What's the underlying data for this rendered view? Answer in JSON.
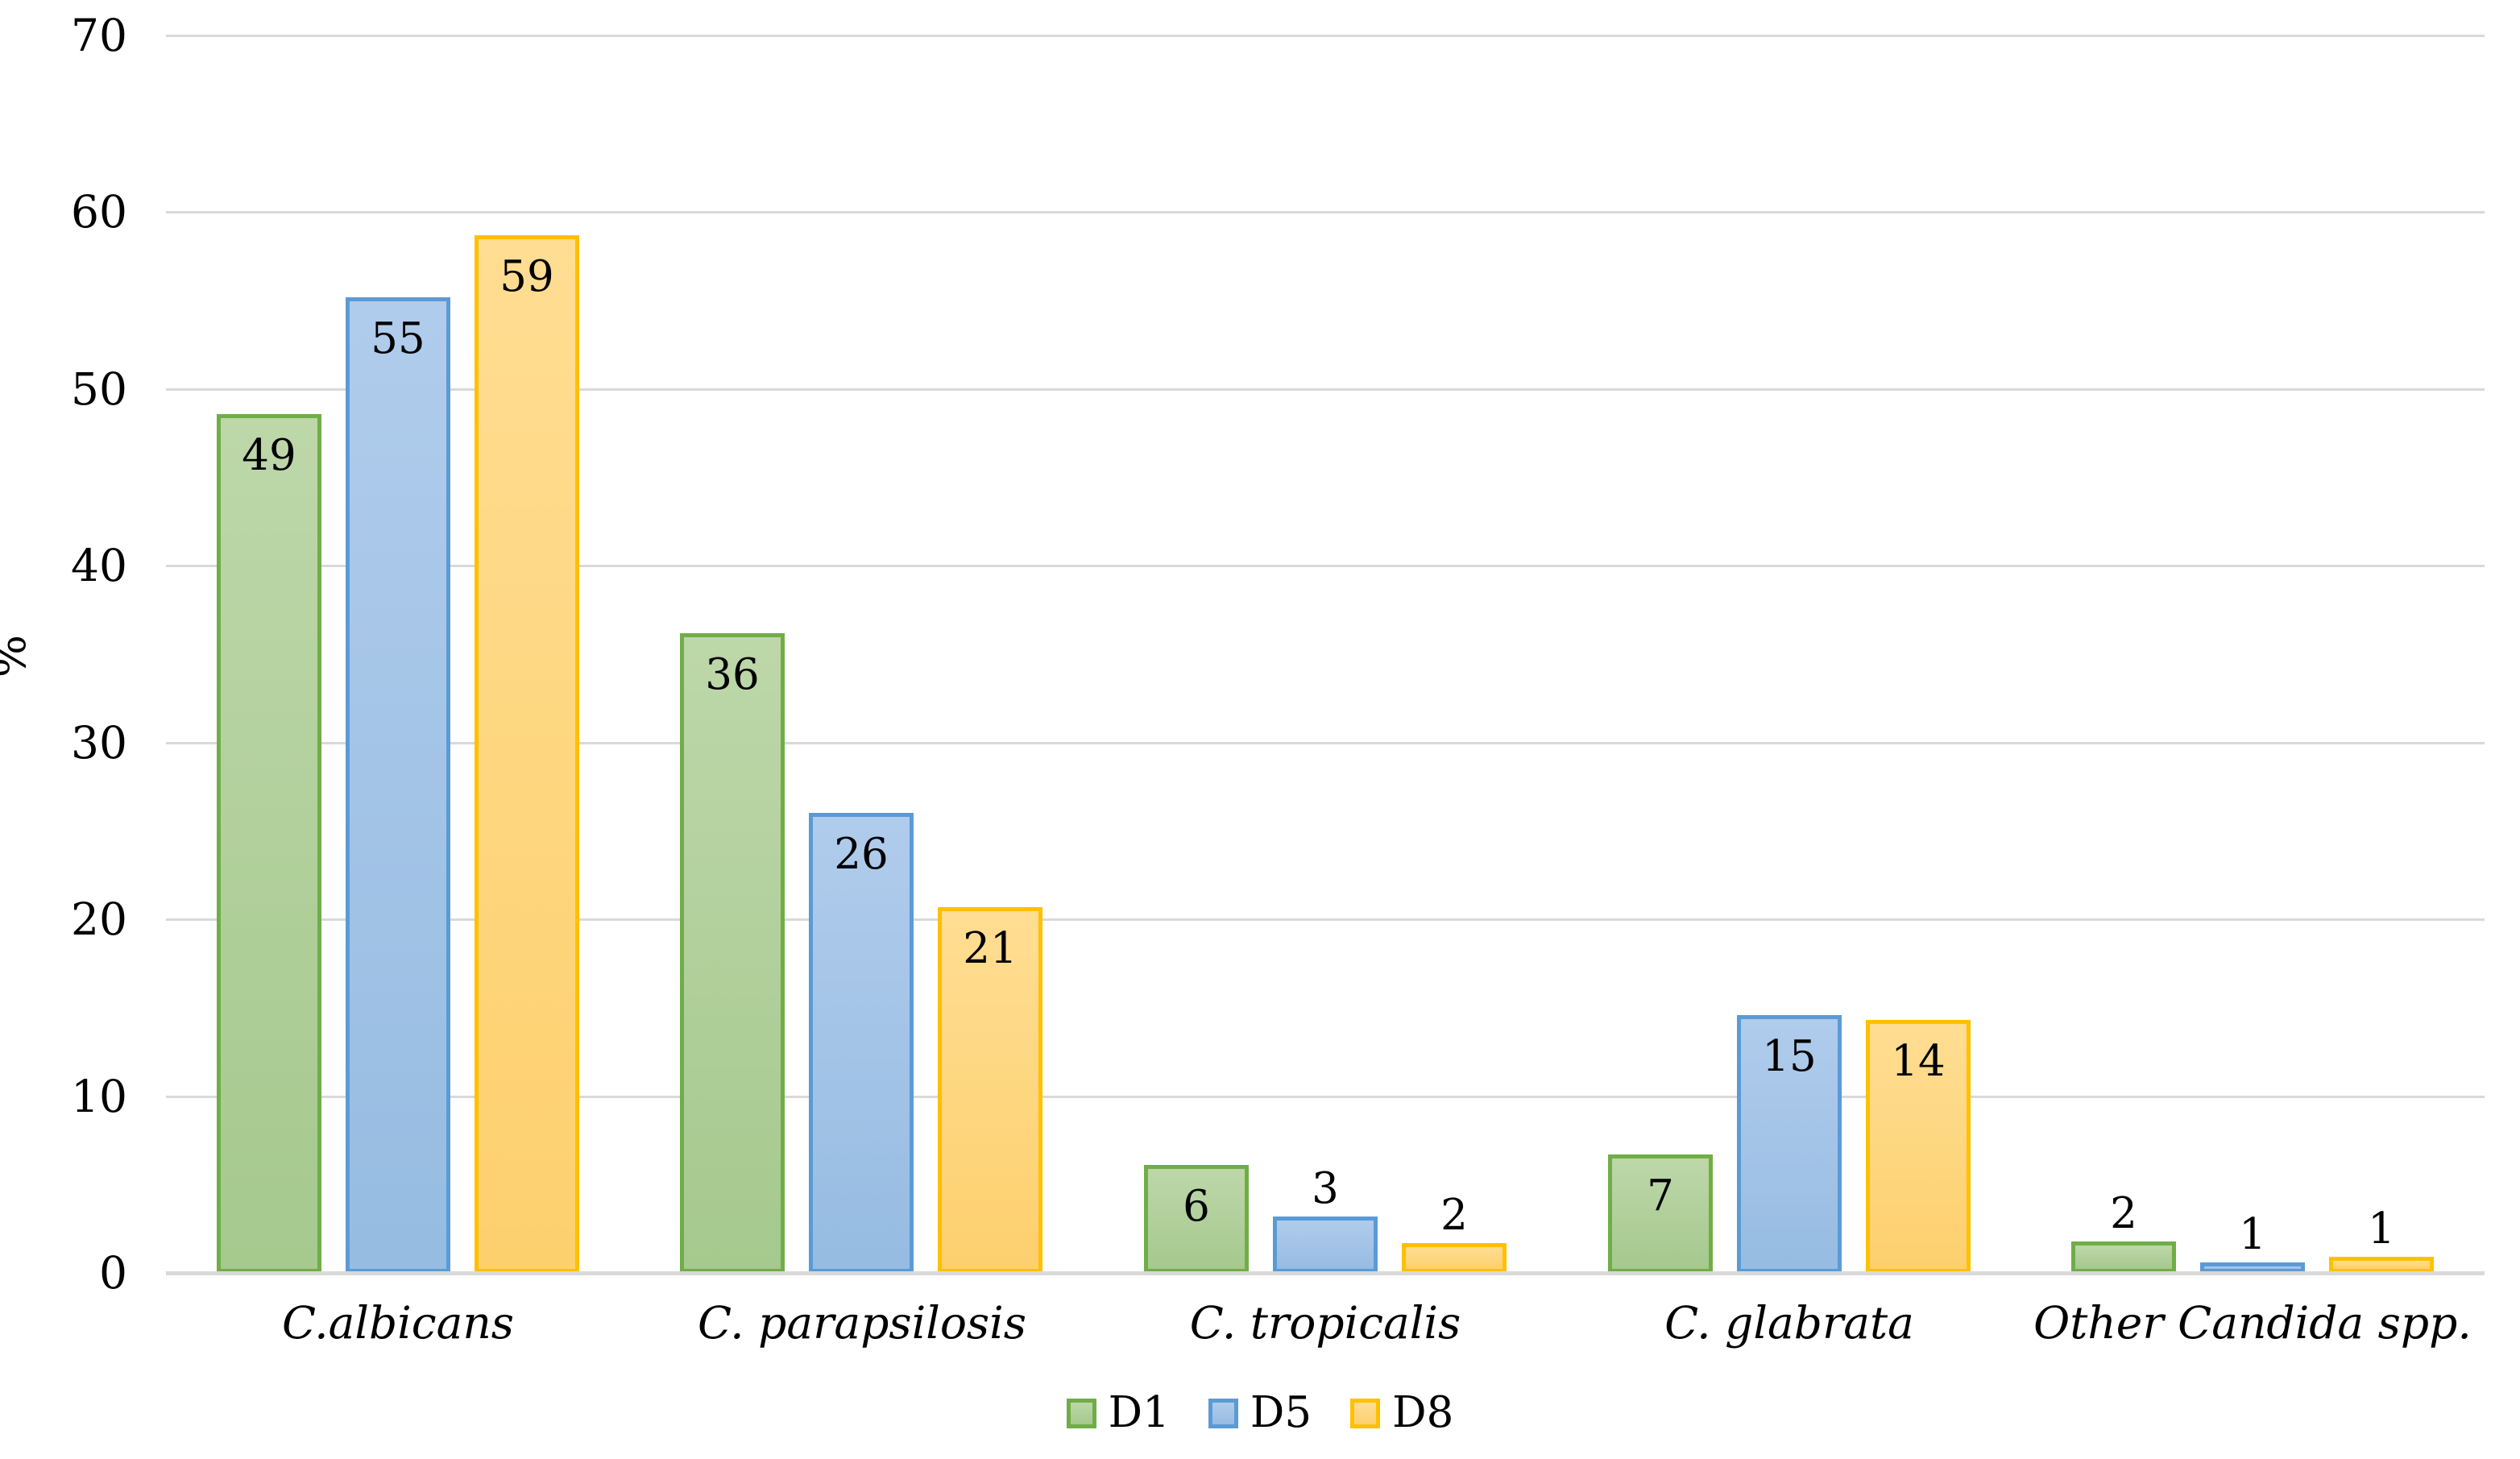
{
  "chart_data": {
    "type": "bar",
    "title": "",
    "ylabel": "%",
    "xlabel": "",
    "ylim": [
      0,
      70
    ],
    "ytick_interval": 10,
    "yticks": [
      70,
      60,
      50,
      40,
      30,
      20,
      10,
      0
    ],
    "grid": "horizontal",
    "gridline_color": "#d9d9d9",
    "axis_text_color": "#000000",
    "legend_position": "bottom",
    "categories": [
      "C.albicans",
      "C. parapsilosis",
      "C. tropicalis",
      "C. glabrata",
      "Other Candida spp."
    ],
    "series": [
      {
        "name": "D1",
        "values": [
          49,
          36,
          6,
          7,
          2
        ],
        "bar_heights_pct": [
          48.6,
          36.2,
          6.1,
          6.7,
          1.8
        ],
        "fill_top": "#bdd7a9",
        "fill_bottom": "#a5c98e",
        "border": "#70ad47"
      },
      {
        "name": "D5",
        "values": [
          55,
          26,
          3,
          15,
          1
        ],
        "bar_heights_pct": [
          55.2,
          26.0,
          3.2,
          14.6,
          0.6
        ],
        "fill_top": "#b0ccec",
        "fill_bottom": "#96bce1",
        "border": "#5b9bd5"
      },
      {
        "name": "D8",
        "values": [
          59,
          21,
          2,
          14,
          1
        ],
        "bar_heights_pct": [
          58.7,
          20.7,
          1.7,
          14.3,
          0.9
        ],
        "fill_top": "#ffdd92",
        "fill_bottom": "#fdd06e",
        "border": "#ffc000"
      }
    ]
  }
}
